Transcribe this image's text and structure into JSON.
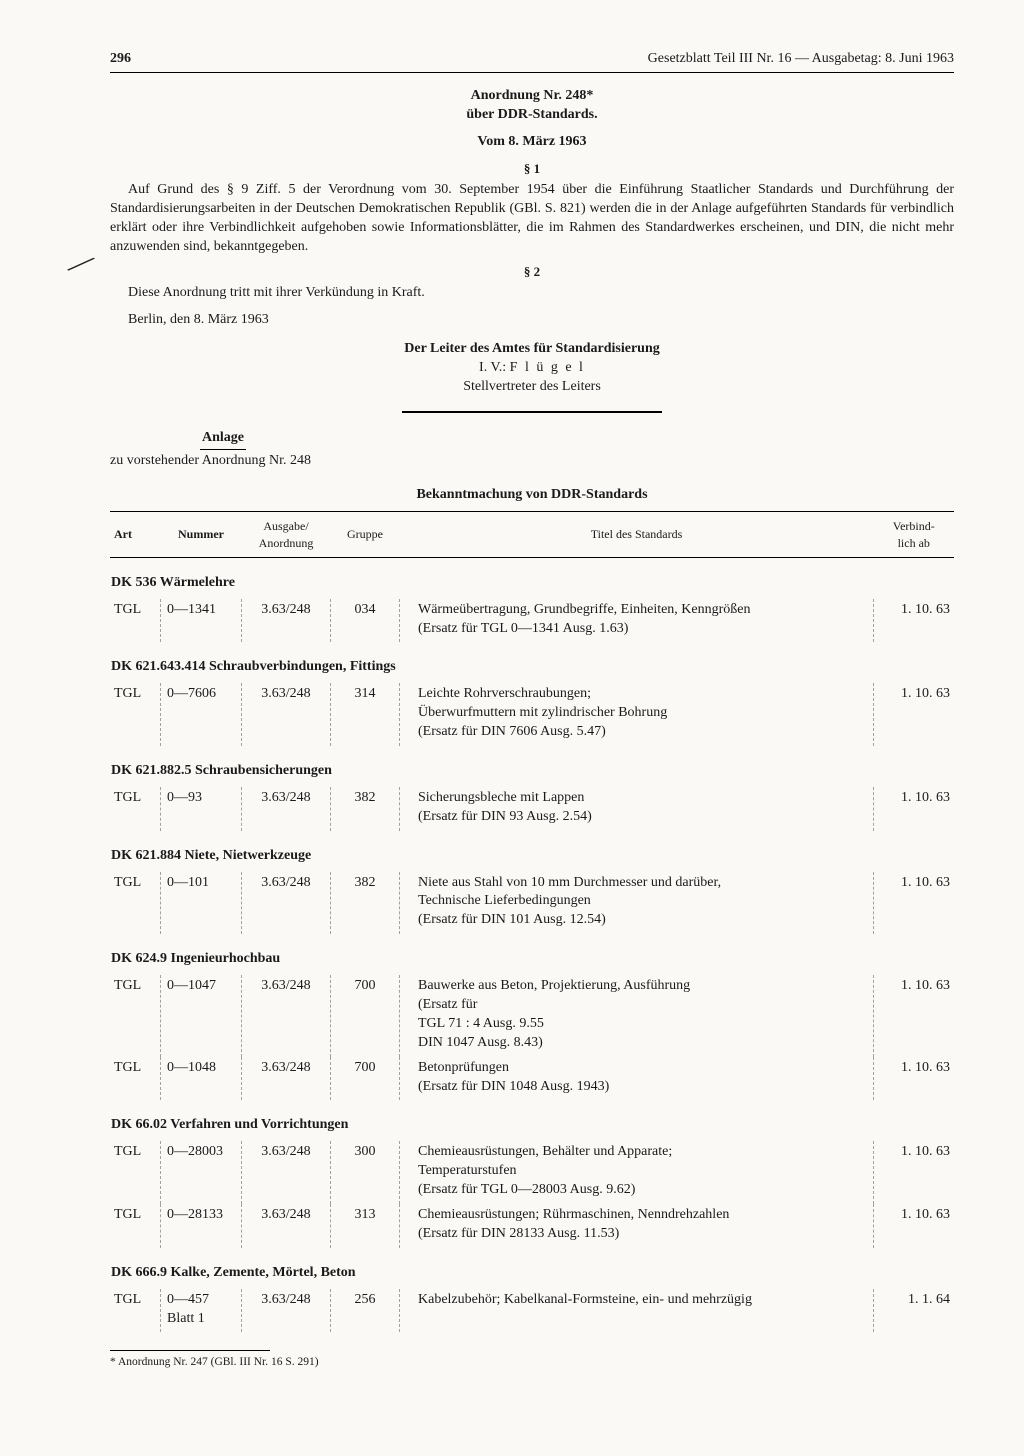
{
  "header": {
    "page_number": "296",
    "running_title": "Gesetzblatt Teil III Nr. 16 — Ausgabetag: 8. Juni 1963"
  },
  "title": {
    "line1": "Anordnung Nr. 248*",
    "line2": "über DDR-Standards.",
    "date": "Vom 8. März 1963"
  },
  "sections": {
    "s1_mark": "§ 1",
    "s1_text": "Auf Grund des § 9 Ziff. 5 der Verordnung vom 30. September 1954 über die Einführung Staatlicher Standards und Durchführung der Standardisierungsarbeiten in der Deutschen Demokratischen Republik (GBl. S. 821) werden die in der Anlage aufgeführten Standards für verbindlich erklärt oder ihre Verbindlichkeit aufgehoben sowie Informationsblätter, die im Rahmen des Standardwerkes erscheinen, und DIN, die nicht mehr anzuwenden sind, bekanntgegeben.",
    "s2_mark": "§ 2",
    "s2_text": "Diese Anordnung tritt mit ihrer Verkündung in Kraft.",
    "place_date": "Berlin, den 8. März 1963"
  },
  "signature": {
    "line1": "Der Leiter des Amtes für Standardisierung",
    "line2_prefix": "I. V.: ",
    "line2_name": "F l ü g e l",
    "line3": "Stellvertreter des Leiters"
  },
  "anlage": {
    "label": "Anlage",
    "sub": "zu vorstehender Anordnung Nr. 248"
  },
  "table": {
    "title": "Bekanntmachung von DDR-Standards",
    "columns": {
      "art": "Art",
      "nummer": "Nummer",
      "ausgabe": "Ausgabe/\nAnordnung",
      "gruppe": "Gruppe",
      "titel": "Titel des Standards",
      "verbindlich": "Verbind-\nlich ab"
    },
    "groups": [
      {
        "heading": "DK 536 Wärmelehre",
        "rows": [
          {
            "art": "TGL",
            "num": "0—1341",
            "ausg": "3.63/248",
            "grp": "034",
            "title": "Wärmeübertragung, Grundbegriffe, Einheiten, Kenngrößen\n(Ersatz für TGL 0—1341 Ausg. 1.63)",
            "date": "1. 10. 63"
          }
        ]
      },
      {
        "heading": "DK 621.643.414 Schraubverbindungen, Fittings",
        "rows": [
          {
            "art": "TGL",
            "num": "0—7606",
            "ausg": "3.63/248",
            "grp": "314",
            "title": "Leichte Rohrverschraubungen;\nÜberwurfmuttern mit zylindrischer Bohrung\n(Ersatz für DIN 7606 Ausg. 5.47)",
            "date": "1. 10. 63"
          }
        ]
      },
      {
        "heading": "DK 621.882.5 Schraubensicherungen",
        "rows": [
          {
            "art": "TGL",
            "num": "0—93",
            "ausg": "3.63/248",
            "grp": "382",
            "title": "Sicherungsbleche mit Lappen\n(Ersatz für DIN 93 Ausg. 2.54)",
            "date": "1. 10. 63"
          }
        ]
      },
      {
        "heading": "DK 621.884 Niete, Nietwerkzeuge",
        "rows": [
          {
            "art": "TGL",
            "num": "0—101",
            "ausg": "3.63/248",
            "grp": "382",
            "title": "Niete aus Stahl von 10 mm Durchmesser und darüber,\nTechnische Lieferbedingungen\n(Ersatz für DIN 101 Ausg. 12.54)",
            "date": "1. 10. 63"
          }
        ]
      },
      {
        "heading": "DK 624.9 Ingenieurhochbau",
        "rows": [
          {
            "art": "TGL",
            "num": "0—1047",
            "ausg": "3.63/248",
            "grp": "700",
            "title": "Bauwerke aus Beton, Projektierung, Ausführung\n(Ersatz für\nTGL 71 : 4 Ausg. 9.55\nDIN 1047 Ausg. 8.43)",
            "date": "1. 10. 63"
          },
          {
            "art": "TGL",
            "num": "0—1048",
            "ausg": "3.63/248",
            "grp": "700",
            "title": "Betonprüfungen\n(Ersatz für DIN 1048 Ausg. 1943)",
            "date": "1. 10. 63"
          }
        ]
      },
      {
        "heading": "DK 66.02 Verfahren und Vorrichtungen",
        "rows": [
          {
            "art": "TGL",
            "num": "0—28003",
            "ausg": "3.63/248",
            "grp": "300",
            "title": "Chemieausrüstungen, Behälter und Apparate;\nTemperaturstufen\n(Ersatz für TGL 0—28003 Ausg. 9.62)",
            "date": "1. 10. 63"
          },
          {
            "art": "TGL",
            "num": "0—28133",
            "ausg": "3.63/248",
            "grp": "313",
            "title": "Chemieausrüstungen; Rührmaschinen, Nenndrehzahlen\n(Ersatz für DIN 28133 Ausg. 11.53)",
            "date": "1. 10. 63"
          }
        ]
      },
      {
        "heading": "DK 666.9 Kalke, Zemente, Mörtel, Beton",
        "rows": [
          {
            "art": "TGL",
            "num": "0—457\nBlatt 1",
            "ausg": "3.63/248",
            "grp": "256",
            "title": "Kabelzubehör; Kabelkanal-Formsteine, ein- und mehrzügig",
            "date": "1.  1. 64"
          }
        ]
      }
    ]
  },
  "footnote": "* Anordnung Nr. 247 (GBl. III Nr. 16 S. 291)"
}
